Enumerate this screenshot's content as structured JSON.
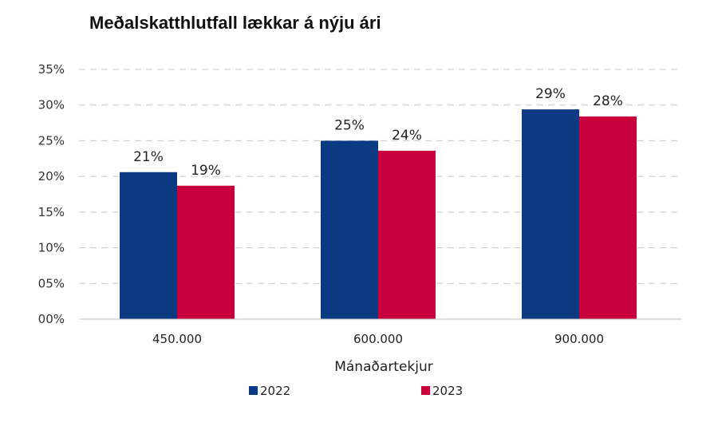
{
  "chart_data": {
    "type": "bar",
    "title": "Meðalskatthlutfall lækkar á nýju ári",
    "xlabel": "Mánaðartekjur",
    "ylabel": "",
    "categories": [
      "450.000",
      "600.000",
      "900.000"
    ],
    "series": [
      {
        "name": "2022",
        "color": "#0b3a82",
        "values": [
          20.6,
          25.0,
          29.4
        ],
        "labels": [
          "21%",
          "25%",
          "29%"
        ]
      },
      {
        "name": "2023",
        "color": "#c8003c",
        "values": [
          18.7,
          23.6,
          28.4
        ],
        "labels": [
          "19%",
          "24%",
          "28%"
        ]
      }
    ],
    "ylim": [
      0,
      35
    ],
    "y_ticks": [
      "00%",
      "05%",
      "10%",
      "15%",
      "20%",
      "25%",
      "30%",
      "35%"
    ],
    "grid": true,
    "legend_position": "bottom"
  }
}
